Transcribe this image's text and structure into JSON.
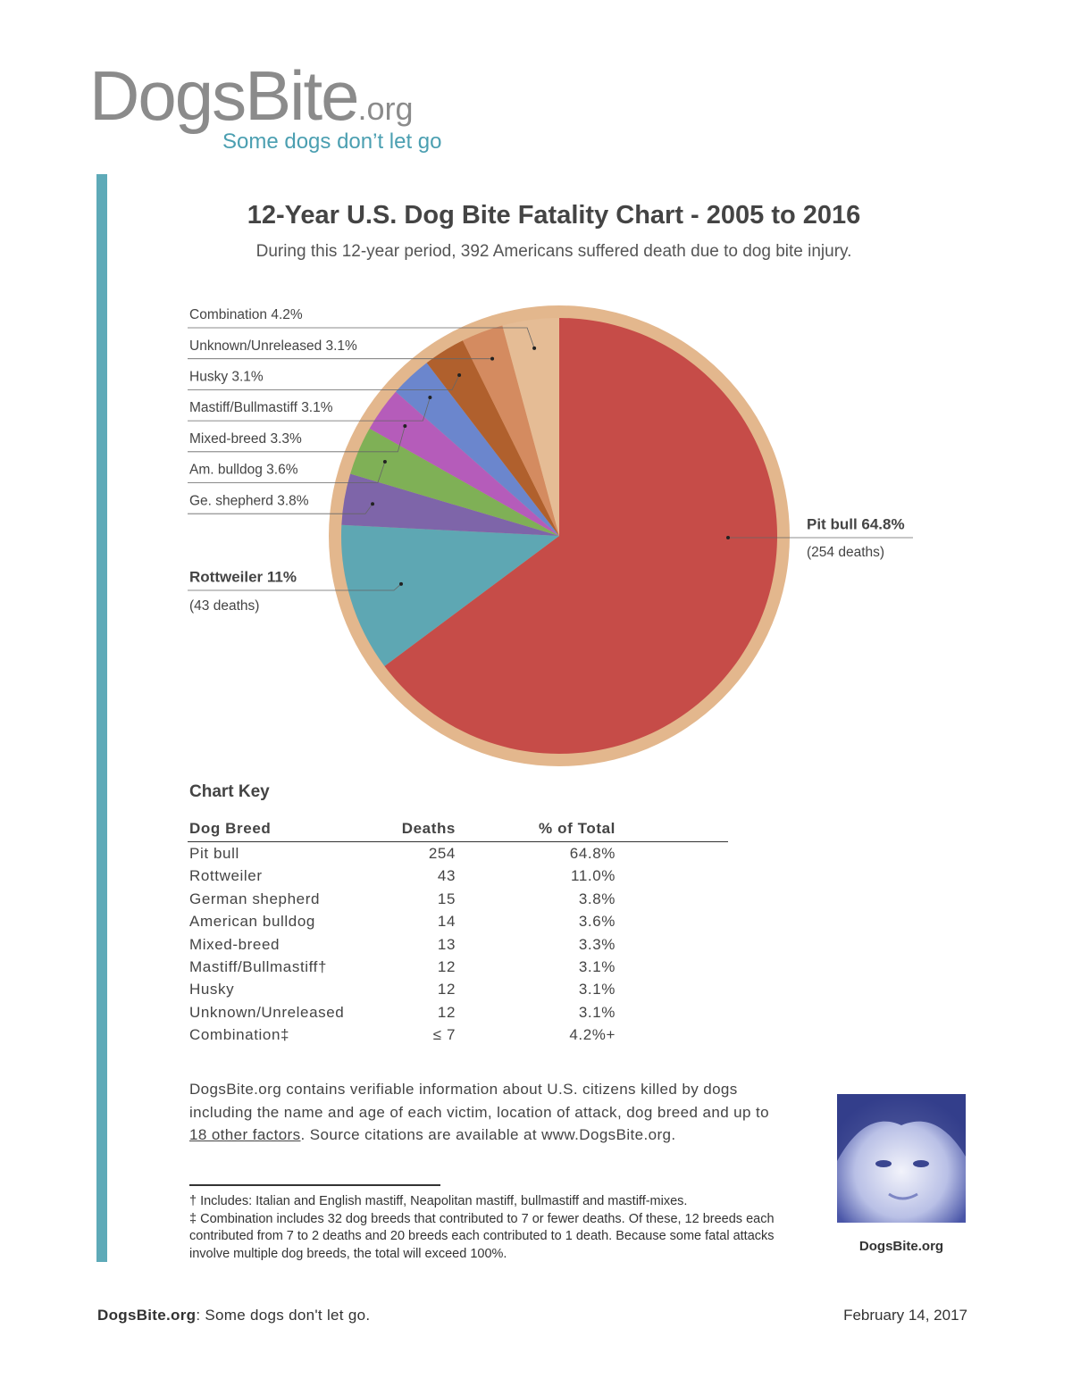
{
  "logo": {
    "name": "DogsBite",
    "suffix": ".org",
    "tagline": "Some dogs don’t let go"
  },
  "chart_data": {
    "type": "pie",
    "title": "12-Year U.S. Dog Bite Fatality Chart - 2005 to 2016",
    "subtitle": "During this 12-year period, 392 Americans suffered death due to dog bite injury.",
    "labels": [
      "Pit bull 64.8%",
      "Rottweiler 11%",
      "Ge. shepherd 3.8%",
      "Am. bulldog 3.6%",
      "Mixed-breed 3.3%",
      "Mastiff/Bullmastiff 3.1%",
      "Husky 3.1%",
      "Unknown/Unreleased 3.1%",
      "Combination 4.2%"
    ],
    "values": [
      64.8,
      11,
      3.8,
      3.6,
      3.3,
      3.1,
      3.1,
      3.1,
      4.2
    ],
    "colors": [
      "#c64c48",
      "#5ea7b3",
      "#7e65a9",
      "#7fb056",
      "#b55cba",
      "#6b86cd",
      "#b0602d",
      "#d48b60",
      "#e5bc95"
    ],
    "annotations": [
      "(254 deaths)",
      "(43 deaths)"
    ]
  },
  "table": {
    "title": "Chart Key",
    "header": [
      "Dog Breed",
      "Deaths",
      "% of Total"
    ],
    "rows": [
      [
        "Pit bull",
        "254",
        "64.8%"
      ],
      [
        "Rottweiler",
        "43",
        "11.0%"
      ],
      [
        "German shepherd",
        "15",
        "3.8%"
      ],
      [
        "American bulldog",
        "14",
        "3.6%"
      ],
      [
        "Mixed-breed",
        "13",
        "3.3%"
      ],
      [
        "Mastiff/Bullmastiff†",
        "12",
        "3.1%"
      ],
      [
        "Husky",
        "12",
        "3.1%"
      ],
      [
        "Unknown/Unreleased",
        "12",
        "3.1%"
      ],
      [
        "Combination‡",
        "≤ 7",
        "4.2%+"
      ]
    ]
  },
  "paragraph": {
    "before": "DogsBite.org contains verifiable information about U.S. citizens killed by dogs including the name and age of each victim, location of attack, dog breed and up to ",
    "link": "18 other factors",
    "after": ". Source citations are available at www.DogsBite.org."
  },
  "footnotes": [
    "† Includes: Italian and English mastiff, Neapolitan mastiff, bullmastiff and mastiff-mixes.",
    "‡ Combination includes 32 dog breeds that contributed to 7 or fewer deaths. Of these, 12 breeds each contributed from 7 to 2 deaths and 20 breeds each contributed to 1 death. Because some fatal attacks involve multiple dog breeds, the total will exceed 100%."
  ],
  "photo_caption": "DogsBite.org",
  "footer": {
    "brand": "DogsBite.org",
    "tagline": ": Some dogs don't let go.",
    "date": "February 14, 2017"
  }
}
